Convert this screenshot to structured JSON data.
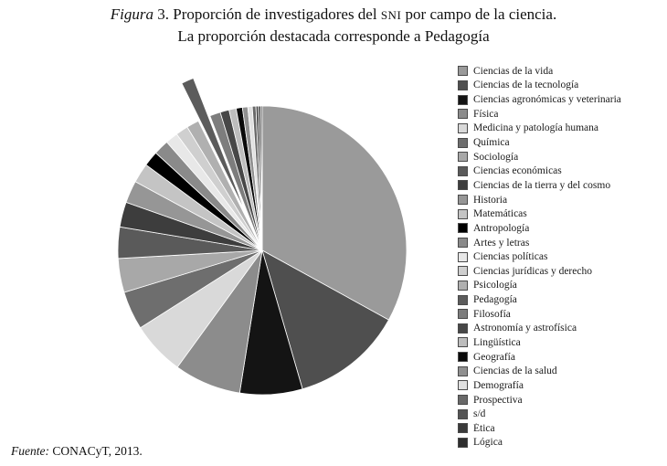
{
  "title": {
    "label_italic": "Figura",
    "label_number": "3.",
    "line1_pre": "Proporción de investigadores del ",
    "line1_smallcaps": "SNI",
    "line1_post": " por campo de la ciencia.",
    "line2": "La proporción destacada corresponde a Pedagogía"
  },
  "source": {
    "label_italic": "Fuente:",
    "text": " CONACyT, 2013."
  },
  "chart_data": {
    "type": "pie",
    "title": "Proporción de investigadores del SNI por campo de la ciencia",
    "subtitle": "La proporción destacada corresponde a Pedagogía",
    "units": "percent (estimated from slice angles)",
    "direction": "clockwise",
    "start_angle_deg": 0,
    "legend_position": "right",
    "exploded_category": "Pedagogía",
    "categories": [
      "Ciencias de la vida",
      "Ciencias de la tecnología",
      "Ciencias agronómicas y veterinaria",
      "Física",
      "Medicina y patología humana",
      "Química",
      "Sociología",
      "Ciencias económicas",
      "Ciencias de la tierra y del cosmo",
      "Historia",
      "Matemáticas",
      "Antropología",
      "Artes y letras",
      "Ciencias políticas",
      "Ciencias jurídicas y derecho",
      "Psicología",
      "Pedagogía",
      "Filosofía",
      "Astronomía y astrofísica",
      "Lingüística",
      "Geografía",
      "Ciencias de la salud",
      "Demografía",
      "Prospectiva",
      "s/d",
      "Ética",
      "Lógica"
    ],
    "values": [
      33,
      12.5,
      7,
      7.5,
      6,
      4.3,
      3.8,
      3.5,
      2.8,
      2.5,
      2.2,
      1.7,
      1.7,
      1.4,
      1.4,
      1.4,
      1.4,
      1.2,
      1.0,
      0.8,
      0.7,
      0.6,
      0.5,
      0.4,
      0.3,
      0.25,
      0.15
    ],
    "colors": [
      "#9a9a9a",
      "#4f4f4f",
      "#141414",
      "#8c8c8c",
      "#d9d9d9",
      "#6e6e6e",
      "#a8a8a8",
      "#5a5a5a",
      "#3d3d3d",
      "#969696",
      "#c4c4c4",
      "#000000",
      "#8a8a8a",
      "#e8e8e8",
      "#cfcfcf",
      "#b0b0b0",
      "#5c5c5c",
      "#7d7d7d",
      "#474747",
      "#bdbdbd",
      "#0a0a0a",
      "#909090",
      "#e0e0e0",
      "#696969",
      "#545454",
      "#3a3a3a",
      "#2e2e2e"
    ]
  }
}
